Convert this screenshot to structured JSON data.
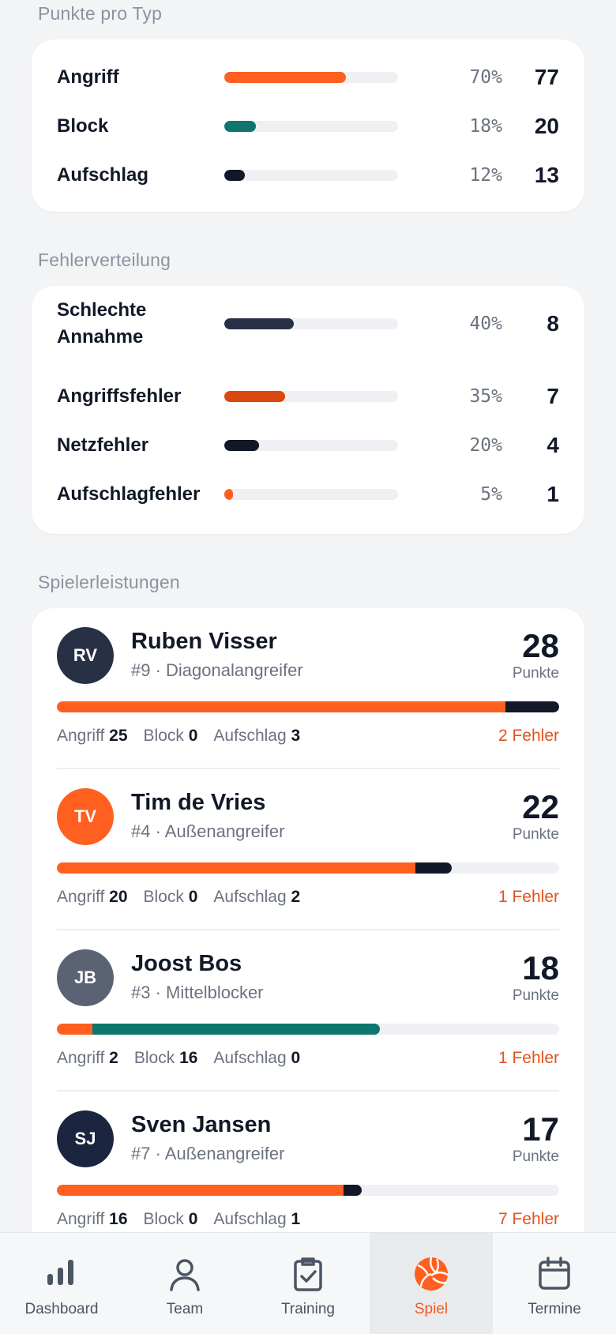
{
  "points_section": {
    "title": "Punkte pro Typ",
    "rows": [
      {
        "label": "Angriff",
        "pct_text": "70%",
        "count": "77",
        "fill": 0.7,
        "color": "#ff5f1f"
      },
      {
        "label": "Block",
        "pct_text": "18%",
        "count": "20",
        "fill": 0.18,
        "color": "#0f766e"
      },
      {
        "label": "Aufschlag",
        "pct_text": "12%",
        "count": "13",
        "fill": 0.12,
        "color": "#111827"
      }
    ]
  },
  "errors_section": {
    "title": "Fehlerverteilung",
    "rows": [
      {
        "label": "Schlechte Annahme",
        "pct_text": "40%",
        "count": "8",
        "fill": 0.4,
        "color": "#283046"
      },
      {
        "label": "Angriffsfehler",
        "pct_text": "35%",
        "count": "7",
        "fill": 0.35,
        "color": "#d9480f"
      },
      {
        "label": "Netzfehler",
        "pct_text": "20%",
        "count": "4",
        "fill": 0.2,
        "color": "#111827"
      },
      {
        "label": "Aufschlagfehler",
        "pct_text": "5%",
        "count": "1",
        "fill": 0.05,
        "color": "#ff5f1f"
      }
    ]
  },
  "players_section": {
    "title": "Spielerleistungen",
    "points_label": "Punkte",
    "players": [
      {
        "initials": "RV",
        "avatar_color": "#283046",
        "name": "Ruben Visser",
        "meta": "#9 · Diagonalangreifer",
        "points": "28",
        "attack_label": "Angriff",
        "attack": 25,
        "block_label": "Block",
        "block": 0,
        "serve_label": "Aufschlag",
        "serve": 3,
        "errors": "2 Fehler"
      },
      {
        "initials": "TV",
        "avatar_color": "#ff5f1f",
        "name": "Tim de Vries",
        "meta": "#4 · Außenangreifer",
        "points": "22",
        "attack_label": "Angriff",
        "attack": 20,
        "block_label": "Block",
        "block": 0,
        "serve_label": "Aufschlag",
        "serve": 2,
        "errors": "1 Fehler"
      },
      {
        "initials": "JB",
        "avatar_color": "#5b6274",
        "name": "Joost Bos",
        "meta": "#3 · Mittelblocker",
        "points": "18",
        "attack_label": "Angriff",
        "attack": 2,
        "block_label": "Block",
        "block": 16,
        "serve_label": "Aufschlag",
        "serve": 0,
        "errors": "1 Fehler"
      },
      {
        "initials": "SJ",
        "avatar_color": "#1b2540",
        "name": "Sven Jansen",
        "meta": "#7 · Außenangreifer",
        "points": "17",
        "attack_label": "Angriff",
        "attack": 16,
        "block_label": "Block",
        "block": 0,
        "serve_label": "Aufschlag",
        "serve": 1,
        "errors": "7 Fehler"
      }
    ],
    "bar_scale_max": 28,
    "colors": {
      "attack": "#ff5f1f",
      "block": "#0f766e",
      "serve": "#111827"
    }
  },
  "nav": {
    "items": [
      {
        "label": "Dashboard",
        "icon": "bar-chart-icon",
        "active": false
      },
      {
        "label": "Team",
        "icon": "person-icon",
        "active": false
      },
      {
        "label": "Training",
        "icon": "clipboard-check-icon",
        "active": false
      },
      {
        "label": "Spiel",
        "icon": "volleyball-icon",
        "active": true
      },
      {
        "label": "Termine",
        "icon": "calendar-icon",
        "active": false
      }
    ]
  }
}
